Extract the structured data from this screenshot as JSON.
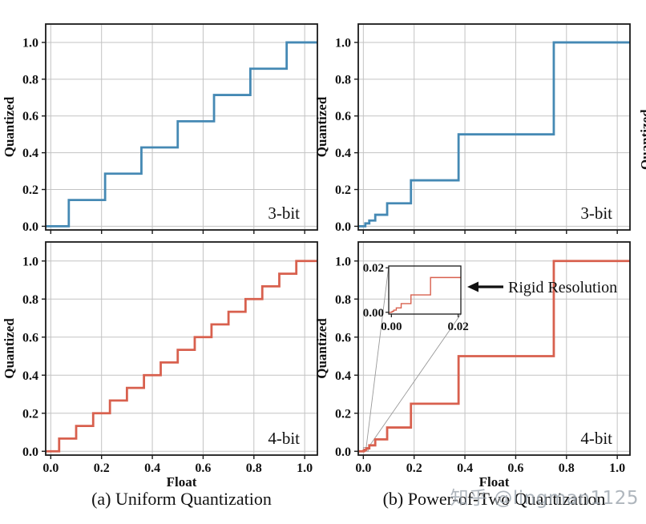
{
  "figure": {
    "captions": {
      "a": "(a) Uniform Quantization",
      "b": "(b) Power-of-Two Quantization"
    },
    "watermark": "知乎 @lingman1125",
    "clipped_right_axis_label": "Quantized"
  },
  "colors": {
    "blue_3bit": "#4589b4",
    "red_4bit": "#d8604e",
    "grid": "#c3c3c3",
    "frame": "#1a1a1a",
    "text": "#111111",
    "connector": "#999999"
  },
  "chart_data": {
    "type": "step",
    "xlabel": "Float",
    "ylabel": "Quantized",
    "x_tick_labels": [
      "0.0",
      "0.2",
      "0.4",
      "0.6",
      "0.8",
      "1.0"
    ],
    "y_tick_labels": [
      "0.0",
      "0.2",
      "0.4",
      "0.6",
      "0.8",
      "1.0"
    ],
    "xlim": [
      -0.02,
      1.05
    ],
    "ylim": [
      -0.02,
      1.1
    ],
    "grid": true,
    "panels": [
      {
        "key": "uniform-3bit",
        "column": "a",
        "bit_label": "3-bit",
        "color": "blue_3bit",
        "show_x_tick_labels": false,
        "show_x_axis_label": false,
        "levels": [
          0,
          0.143,
          0.286,
          0.429,
          0.571,
          0.714,
          0.857,
          1.0
        ],
        "thresholds": [
          0.071,
          0.214,
          0.357,
          0.5,
          0.643,
          0.786,
          0.929
        ]
      },
      {
        "key": "pot-3bit",
        "column": "b",
        "bit_label": "3-bit",
        "color": "blue_3bit",
        "show_x_tick_labels": false,
        "show_x_axis_label": false,
        "levels": [
          0,
          0.015625,
          0.03125,
          0.0625,
          0.125,
          0.25,
          0.5,
          1.0
        ],
        "thresholds": [
          0.0078,
          0.0234,
          0.0469,
          0.0938,
          0.1875,
          0.375,
          0.75
        ]
      },
      {
        "key": "uniform-4bit",
        "column": "a",
        "bit_label": "4-bit",
        "color": "red_4bit",
        "show_x_tick_labels": true,
        "show_x_axis_label": true,
        "levels": [
          0,
          0.067,
          0.133,
          0.2,
          0.267,
          0.333,
          0.4,
          0.467,
          0.533,
          0.6,
          0.667,
          0.733,
          0.8,
          0.867,
          0.933,
          1.0
        ],
        "thresholds": [
          0.033,
          0.1,
          0.167,
          0.233,
          0.3,
          0.367,
          0.433,
          0.5,
          0.567,
          0.633,
          0.7,
          0.767,
          0.833,
          0.9,
          0.967
        ]
      },
      {
        "key": "pot-4bit",
        "column": "b",
        "bit_label": "4-bit",
        "color": "red_4bit",
        "show_x_tick_labels": true,
        "show_x_axis_label": true,
        "levels": [
          0,
          6.1e-05,
          0.000122,
          0.000244,
          0.000488,
          0.000977,
          0.001953,
          0.003906,
          0.007813,
          0.015625,
          0.03125,
          0.0625,
          0.125,
          0.25,
          0.5,
          1.0
        ],
        "thresholds": [
          3.05e-05,
          9.16e-05,
          0.000183,
          0.000366,
          0.000732,
          0.001465,
          0.00293,
          0.00586,
          0.01172,
          0.02344,
          0.04688,
          0.09375,
          0.1875,
          0.375,
          0.75
        ],
        "inset": {
          "xlim": [
            -0.0008,
            0.0208
          ],
          "ylim": [
            -0.0008,
            0.0208
          ],
          "x_tick_labels": [
            "0.00",
            "0.02"
          ],
          "y_tick_labels": [
            "0.00",
            "0.02"
          ],
          "annotation": "Rigid Resolution"
        }
      }
    ]
  }
}
